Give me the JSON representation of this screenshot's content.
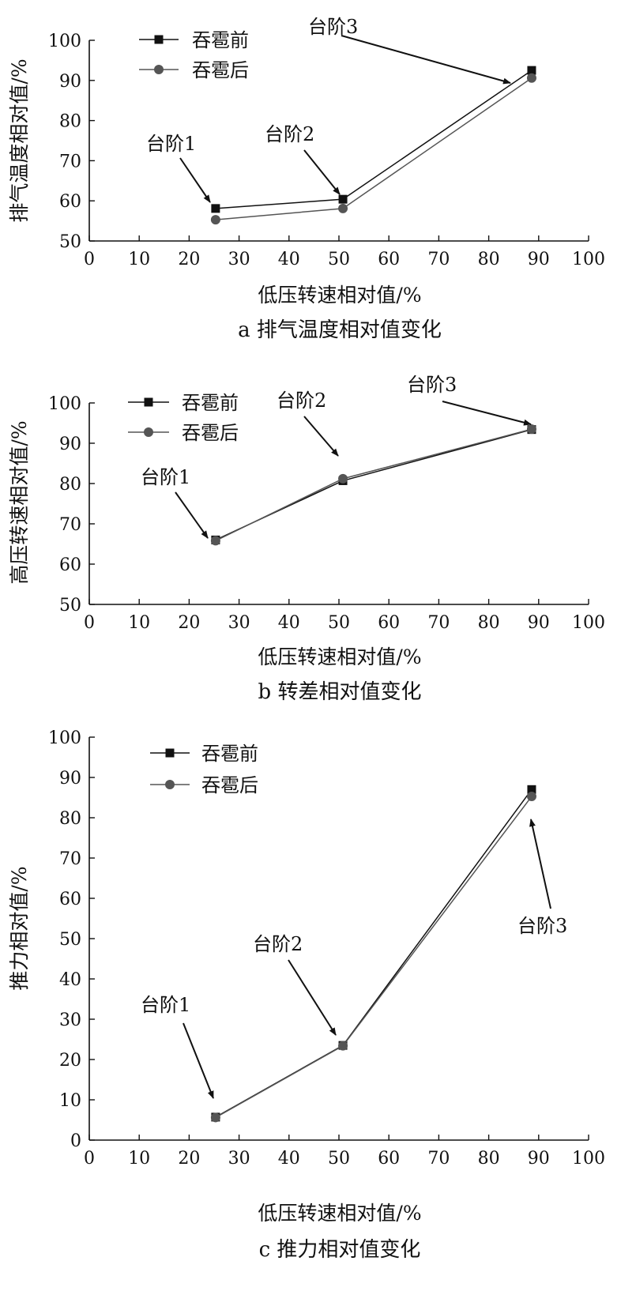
{
  "figure": {
    "panels": [
      {
        "caption": "a 排气温度相对值变化",
        "xlabel": "低压转速相对值/%",
        "ylabel": "排气温度相对值/%",
        "legend": [
          "吞雹前",
          "吞雹后"
        ],
        "annotations": [
          "台阶1",
          "台阶2",
          "台阶3"
        ]
      },
      {
        "caption": "b  转差相对值变化",
        "xlabel": "低压转速相对值/%",
        "ylabel": "高压转速相对值/%",
        "legend": [
          "吞雹前",
          "吞雹后"
        ],
        "annotations": [
          "台阶1",
          "台阶2",
          "台阶3"
        ]
      },
      {
        "caption": "c 推力相对值变化",
        "xlabel": "低压转速相对值/%",
        "ylabel": "推力相对值/%",
        "legend": [
          "吞雹前",
          "吞雹后"
        ],
        "annotations": [
          "台阶1",
          "台阶2",
          "台阶3"
        ]
      }
    ]
  },
  "chart_data": [
    {
      "type": "line",
      "title": "a 排气温度相对值变化",
      "xlabel": "低压转速相对值/%",
      "ylabel": "排气温度相对值/%",
      "xlim": [
        0,
        100
      ],
      "ylim": [
        50,
        100
      ],
      "xticks": [
        0,
        10,
        20,
        30,
        40,
        50,
        60,
        70,
        80,
        90,
        100
      ],
      "yticks": [
        50,
        60,
        70,
        80,
        90,
        100
      ],
      "grid": false,
      "legend_position": "top-left",
      "series": [
        {
          "name": "吞雹前",
          "marker": "square",
          "color": "#111111",
          "x": [
            25.3,
            50.8,
            88.6
          ],
          "y": [
            58.1,
            60.4,
            92.5
          ]
        },
        {
          "name": "吞雹后",
          "marker": "circle",
          "color": "#555555",
          "x": [
            25.3,
            50.8,
            88.6
          ],
          "y": [
            55.3,
            58.1,
            90.6
          ]
        }
      ],
      "annotations": [
        {
          "text": "台阶1",
          "x": 25.3,
          "y": 58.1
        },
        {
          "text": "台阶2",
          "x": 50.8,
          "y": 60.4
        },
        {
          "text": "台阶3",
          "x": 88.6,
          "y": 92.5
        }
      ]
    },
    {
      "type": "line",
      "title": "b  转差相对值变化",
      "xlabel": "低压转速相对值/%",
      "ylabel": "高压转速相对值/%",
      "xlim": [
        0,
        100
      ],
      "ylim": [
        50,
        100
      ],
      "xticks": [
        0,
        10,
        20,
        30,
        40,
        50,
        60,
        70,
        80,
        90,
        100
      ],
      "yticks": [
        50,
        60,
        70,
        80,
        90,
        100
      ],
      "grid": false,
      "legend_position": "top-left",
      "series": [
        {
          "name": "吞雹前",
          "marker": "square",
          "color": "#111111",
          "x": [
            25.3,
            50.8,
            88.6
          ],
          "y": [
            66.0,
            80.7,
            93.4
          ]
        },
        {
          "name": "吞雹后",
          "marker": "circle",
          "color": "#555555",
          "x": [
            25.3,
            50.8,
            88.6
          ],
          "y": [
            65.8,
            81.2,
            93.5
          ]
        }
      ],
      "annotations": [
        {
          "text": "台阶1",
          "x": 25.3,
          "y": 66.0
        },
        {
          "text": "台阶2",
          "x": 50.8,
          "y": 80.7
        },
        {
          "text": "台阶3",
          "x": 88.6,
          "y": 93.4
        }
      ]
    },
    {
      "type": "line",
      "title": "c 推力相对值变化",
      "xlabel": "低压转速相对值/%",
      "ylabel": "推力相对值/%",
      "xlim": [
        0,
        100
      ],
      "ylim": [
        0,
        100
      ],
      "xticks": [
        0,
        10,
        20,
        30,
        40,
        50,
        60,
        70,
        80,
        90,
        100
      ],
      "yticks": [
        0,
        10,
        20,
        30,
        40,
        50,
        60,
        70,
        80,
        90,
        100
      ],
      "grid": false,
      "legend_position": "top-left",
      "series": [
        {
          "name": "吞雹前",
          "marker": "square",
          "color": "#111111",
          "x": [
            25.3,
            50.8,
            88.6
          ],
          "y": [
            5.7,
            23.5,
            87.0
          ]
        },
        {
          "name": "吞雹后",
          "marker": "circle",
          "color": "#555555",
          "x": [
            25.3,
            50.8,
            88.6
          ],
          "y": [
            5.6,
            23.4,
            85.3
          ]
        }
      ],
      "annotations": [
        {
          "text": "台阶1",
          "x": 25.3,
          "y": 5.7
        },
        {
          "text": "台阶2",
          "x": 50.8,
          "y": 23.5
        },
        {
          "text": "台阶3",
          "x": 88.6,
          "y": 85.3
        }
      ]
    }
  ]
}
